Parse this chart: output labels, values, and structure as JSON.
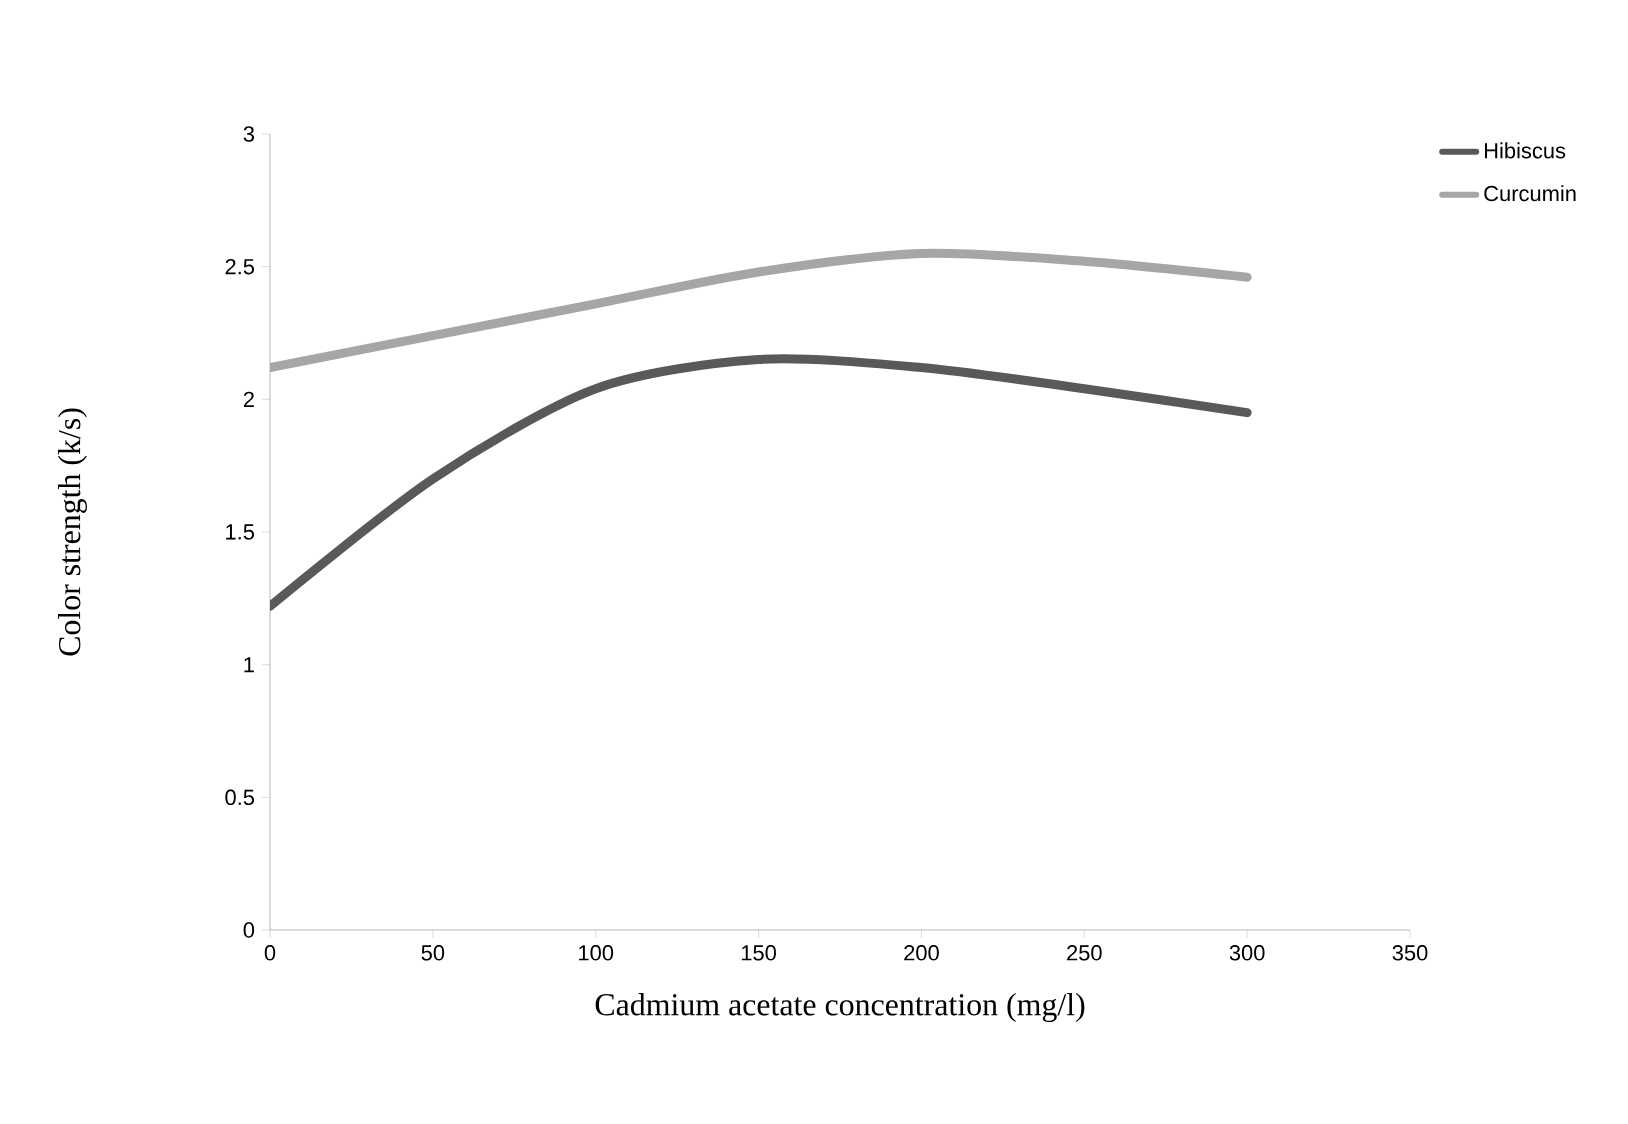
{
  "chart_data": {
    "type": "line",
    "xlabel": "Cadmium acetate  concentration (mg/l)",
    "ylabel": "Color strength (k/s)",
    "x": [
      0,
      50,
      100,
      150,
      200,
      250,
      300
    ],
    "series": [
      {
        "name": "Hibiscus",
        "color": "#595959",
        "values": [
          1.22,
          1.7,
          2.04,
          2.15,
          2.12,
          2.04,
          1.95
        ]
      },
      {
        "name": "Curcumin",
        "color": "#a6a6a6",
        "values": [
          2.12,
          2.24,
          2.36,
          2.48,
          2.55,
          2.52,
          2.46
        ]
      }
    ],
    "xlim": [
      0,
      350
    ],
    "xticks": [
      0,
      50,
      100,
      150,
      200,
      250,
      300,
      350
    ],
    "ylim": [
      0,
      3
    ],
    "yticks": [
      0,
      0.5,
      1,
      1.5,
      2,
      2.5,
      3
    ],
    "grid": false,
    "legend": "top right",
    "marker": "none",
    "line_style": "solid"
  }
}
